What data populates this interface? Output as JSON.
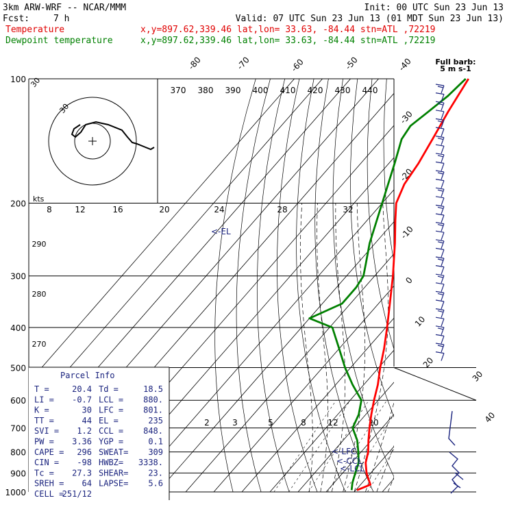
{
  "header": {
    "model": "3km ARW-WRF -- NCAR/MMM",
    "init": "Init: 00 UTC Sun 23 Jun 13",
    "fcst_label": "Fcst:",
    "fcst_value": "7 h",
    "valid": "Valid: 07 UTC Sun 23 Jun 13 (01 MDT Sun 23 Jun 13)",
    "temp_label": "Temperature",
    "temp_loc": "x,y=897.62,339.46   lat,lon= 33.63, -84.44   stn=ATL ,72219",
    "dew_label": "Dewpoint temperature",
    "dew_loc": "x,y=897.62,339.46   lat,lon= 33.63, -84.44   stn=ATL ,72219"
  },
  "colors": {
    "temperature": "#ff0000",
    "dewpoint": "#008000",
    "hodograph": "#000000",
    "winds": "#1a237e",
    "header_red": "#e00000",
    "header_green": "#008000"
  },
  "barb_legend": {
    "line1": "Full barb:",
    "line2": "5 m s-1"
  },
  "hodograph": {
    "kts_label": "kts",
    "ring_labels": [
      "30",
      "30"
    ]
  },
  "theta_labels": [
    "370",
    "380",
    "390",
    "400",
    "410",
    "420",
    "430",
    "440"
  ],
  "mix_top_labels": [
    "8",
    "12",
    "16",
    "20",
    "24",
    "28",
    "32"
  ],
  "mix_bottom_labels": [
    "2",
    "3",
    "5",
    "8",
    "12",
    "20"
  ],
  "isotherm_labels": [
    "-80",
    "-70",
    "-60",
    "-50",
    "-40",
    "-30",
    "-20",
    "-10",
    "0",
    "10",
    "20",
    "30",
    "40"
  ],
  "dry_adiabat_labels": [
    "290",
    "280",
    "270"
  ],
  "parcel_markers": {
    "el": "<-EL",
    "lfc": "<-LFC",
    "ccl": "<-CCL",
    "lcl": "<-LCL"
  },
  "parcel_info": {
    "title": "Parcel Info",
    "rows": [
      [
        "T   =",
        "20.4",
        "Td  =",
        "18.5"
      ],
      [
        "LI  =",
        "-0.7",
        "LCL =",
        "880."
      ],
      [
        "K   =",
        "30",
        "LFC =",
        "801."
      ],
      [
        "TT  =",
        "44",
        "EL  =",
        "235"
      ],
      [
        "SVI =",
        "1.2",
        "CCL =",
        "848."
      ],
      [
        "PW  =",
        "3.36",
        "YGP =",
        "0.1"
      ],
      [
        "CAPE =",
        "296",
        "SWEAT=",
        "309"
      ],
      [
        "CIN  =",
        "-98",
        "HWBZ=",
        "3338."
      ],
      [
        "Tc  =",
        "27.3",
        "SHEAR=",
        "23."
      ],
      [
        "SREH =",
        "64",
        "LAPSE=",
        "5.6"
      ],
      [
        "CELL =",
        "251/12",
        "",
        ""
      ]
    ]
  },
  "chart_data": {
    "type": "line",
    "title": "",
    "xlabel": "",
    "ylabel": "",
    "pressure_levels_hPa": [
      100,
      200,
      300,
      400,
      500,
      600,
      700,
      800,
      900,
      1000
    ],
    "temperature_ticks_C": [
      -80,
      -70,
      -60,
      -50,
      -40,
      -30,
      -20,
      -10,
      0,
      10,
      20,
      30,
      40
    ],
    "ylim": [
      1000,
      100
    ],
    "series": [
      {
        "name": "Temperature",
        "points": [
          {
            "p": 990,
            "t": 20.4
          },
          {
            "p": 960,
            "t": 23.5
          },
          {
            "p": 930,
            "t": 21.0
          },
          {
            "p": 900,
            "t": 18.5
          },
          {
            "p": 850,
            "t": 15.0
          },
          {
            "p": 800,
            "t": 12.5
          },
          {
            "p": 750,
            "t": 9.0
          },
          {
            "p": 700,
            "t": 5.5
          },
          {
            "p": 650,
            "t": 2.0
          },
          {
            "p": 600,
            "t": -1.5
          },
          {
            "p": 550,
            "t": -5.0
          },
          {
            "p": 500,
            "t": -9.5
          },
          {
            "p": 450,
            "t": -14.0
          },
          {
            "p": 400,
            "t": -19.5
          },
          {
            "p": 350,
            "t": -26.0
          },
          {
            "p": 300,
            "t": -33.5
          },
          {
            "p": 250,
            "t": -43.0
          },
          {
            "p": 220,
            "t": -50.0
          },
          {
            "p": 200,
            "t": -55.0
          },
          {
            "p": 180,
            "t": -58.0
          },
          {
            "p": 160,
            "t": -59.5
          },
          {
            "p": 140,
            "t": -62.0
          },
          {
            "p": 120,
            "t": -65.0
          },
          {
            "p": 100,
            "t": -68.0
          }
        ]
      },
      {
        "name": "Dewpoint temperature",
        "points": [
          {
            "p": 990,
            "t": 18.5
          },
          {
            "p": 950,
            "t": 16.5
          },
          {
            "p": 900,
            "t": 14.5
          },
          {
            "p": 850,
            "t": 12.5
          },
          {
            "p": 800,
            "t": 9.0
          },
          {
            "p": 750,
            "t": 5.0
          },
          {
            "p": 700,
            "t": -0.5
          },
          {
            "p": 650,
            "t": -2.5
          },
          {
            "p": 600,
            "t": -6.0
          },
          {
            "p": 550,
            "t": -14.0
          },
          {
            "p": 500,
            "t": -22.0
          },
          {
            "p": 450,
            "t": -30.0
          },
          {
            "p": 400,
            "t": -39.0
          },
          {
            "p": 380,
            "t": -50.0
          },
          {
            "p": 350,
            "t": -43.0
          },
          {
            "p": 320,
            "t": -43.0
          },
          {
            "p": 300,
            "t": -44.0
          },
          {
            "p": 280,
            "t": -47.0
          },
          {
            "p": 250,
            "t": -52.0
          },
          {
            "p": 200,
            "t": -60.0
          },
          {
            "p": 160,
            "t": -68.0
          },
          {
            "p": 140,
            "t": -73.0
          },
          {
            "p": 130,
            "t": -74.0
          },
          {
            "p": 120,
            "t": -72.0
          },
          {
            "p": 110,
            "t": -70.0
          },
          {
            "p": 100,
            "t": -69.0
          }
        ]
      }
    ],
    "markers": [
      {
        "label": "<-EL",
        "p": 235
      },
      {
        "label": "<-LFC",
        "p": 801
      },
      {
        "label": "<-CCL",
        "p": 848
      },
      {
        "label": "<-LCL",
        "p": 880
      }
    ],
    "legend": "top-left",
    "grid": true
  }
}
